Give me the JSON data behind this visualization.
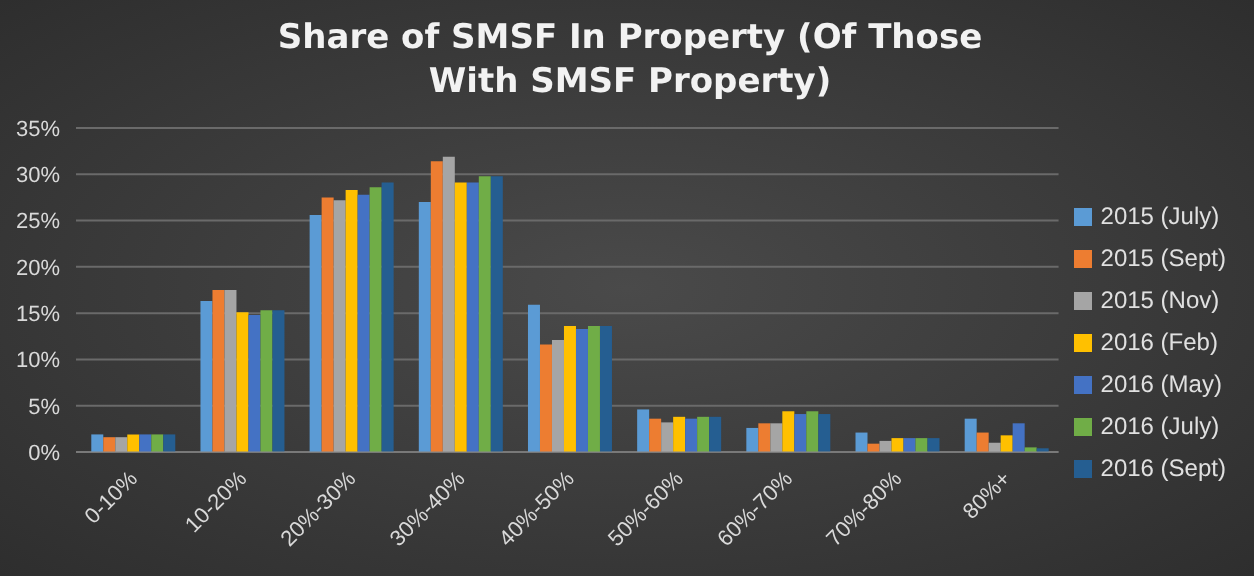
{
  "chart_data": {
    "type": "bar",
    "title": "Share of SMSF In Property  (Of Those With SMSF Property)",
    "categories": [
      "0-10%",
      "10-20%",
      "20%-30%",
      "30%-40%",
      "40%-50%",
      "50%-60%",
      "60%-70%",
      "70%-80%",
      "80%+"
    ],
    "series": [
      {
        "name": "2015 (July)",
        "color": "#5b9bd5",
        "values": [
          1.9,
          16.3,
          25.6,
          27.0,
          15.9,
          4.6,
          2.6,
          2.1,
          3.6
        ]
      },
      {
        "name": "2015 (Sept)",
        "color": "#ed7d31",
        "values": [
          1.6,
          17.5,
          27.5,
          31.4,
          11.6,
          3.6,
          3.1,
          0.9,
          2.1
        ]
      },
      {
        "name": "2015 (Nov)",
        "color": "#a5a5a5",
        "values": [
          1.6,
          17.5,
          27.2,
          31.9,
          12.1,
          3.2,
          3.1,
          1.2,
          1.0
        ]
      },
      {
        "name": "2016 (Feb)",
        "color": "#ffc000",
        "values": [
          1.9,
          15.1,
          28.3,
          29.1,
          13.6,
          3.8,
          4.4,
          1.5,
          1.8
        ]
      },
      {
        "name": "2016 (May)",
        "color": "#4472c4",
        "values": [
          1.9,
          14.8,
          27.8,
          29.1,
          13.3,
          3.6,
          4.1,
          1.5,
          3.1
        ]
      },
      {
        "name": "2016 (July)",
        "color": "#70ad47",
        "values": [
          1.9,
          15.3,
          28.6,
          29.8,
          13.6,
          3.8,
          4.4,
          1.5,
          0.5
        ]
      },
      {
        "name": "2016 (Sept)",
        "color": "#255e91",
        "values": [
          1.9,
          15.3,
          29.1,
          29.8,
          13.6,
          3.8,
          4.1,
          1.5,
          0.4
        ]
      }
    ],
    "ylim": [
      0,
      35
    ],
    "yticks": [
      {
        "value": 0,
        "label": "0%"
      },
      {
        "value": 5,
        "label": "5%"
      },
      {
        "value": 10,
        "label": "10%"
      },
      {
        "value": 15,
        "label": "15%"
      },
      {
        "value": 20,
        "label": "20%"
      },
      {
        "value": 25,
        "label": "25%"
      },
      {
        "value": 30,
        "label": "30%"
      },
      {
        "value": 35,
        "label": "35%"
      }
    ],
    "grid": "y",
    "legend": "right"
  }
}
